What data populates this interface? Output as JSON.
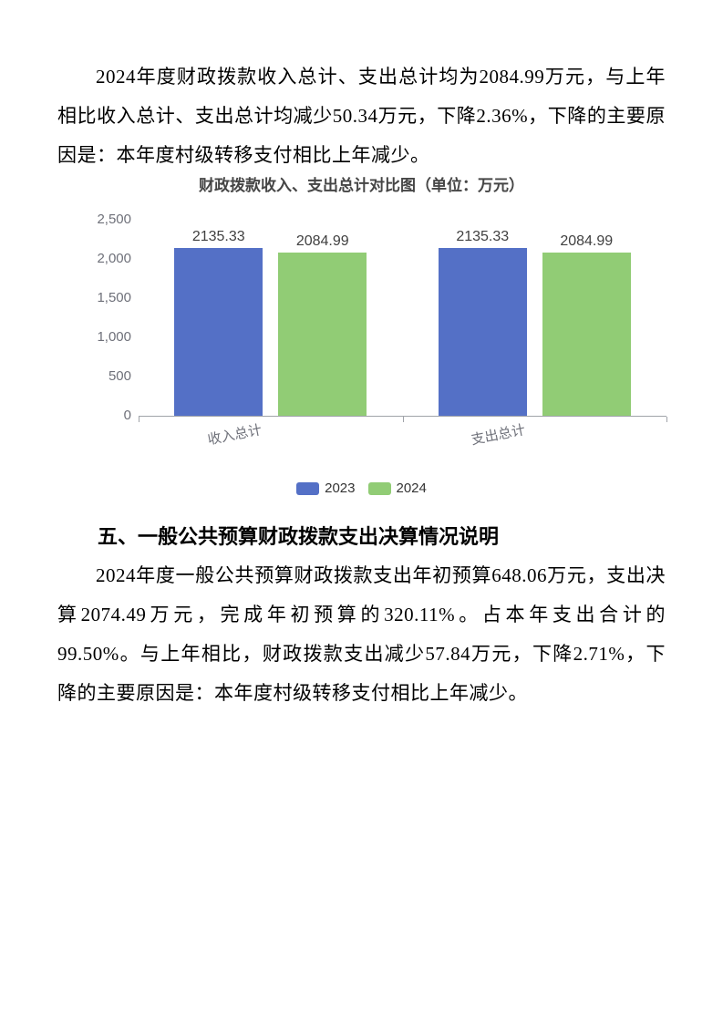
{
  "document": {
    "paragraph1": "2024年度财政拨款收入总计、支出总计均为2084.99万元，与上年相比收入总计、支出总计均减少50.34万元，下降2.36%，下降的主要原因是：本年度村级转移支付相比上年减少。",
    "section_heading": "五、一般公共预算财政拨款支出决算情况说明",
    "paragraph2": "2024年度一般公共预算财政拨款支出年初预算648.06万元，支出决算2074.49万元，完成年初预算的320.11%。占本年支出合计的99.50%。与上年相比，财政拨款支出减少57.84万元，下降2.71%，下降的主要原因是：本年度村级转移支付相比上年减少。"
  },
  "chart_data": {
    "type": "bar",
    "title": "财政拨款收入、支出总计对比图（单位：万元）",
    "categories": [
      "收入总计",
      "支出总计"
    ],
    "series": [
      {
        "name": "2023",
        "color": "#5470c6",
        "values": [
          2135.33,
          2135.33
        ]
      },
      {
        "name": "2024",
        "color": "#91cc75",
        "values": [
          2084.99,
          2084.99
        ]
      }
    ],
    "value_labels": [
      [
        "2135.33",
        "2135.33"
      ],
      [
        "2084.99",
        "2084.99"
      ]
    ],
    "ylim": [
      0,
      2500
    ],
    "ytick_step": 500,
    "ytick_labels": [
      "0",
      "500",
      "1,000",
      "1,500",
      "2,000",
      "2,500"
    ],
    "grid": false,
    "legend_position": "bottom",
    "style": {
      "title_color": "#454545",
      "axis_label_color": "#6e7079",
      "axis_line_color": "#a0a3a9",
      "value_label_color": "#404040"
    }
  }
}
